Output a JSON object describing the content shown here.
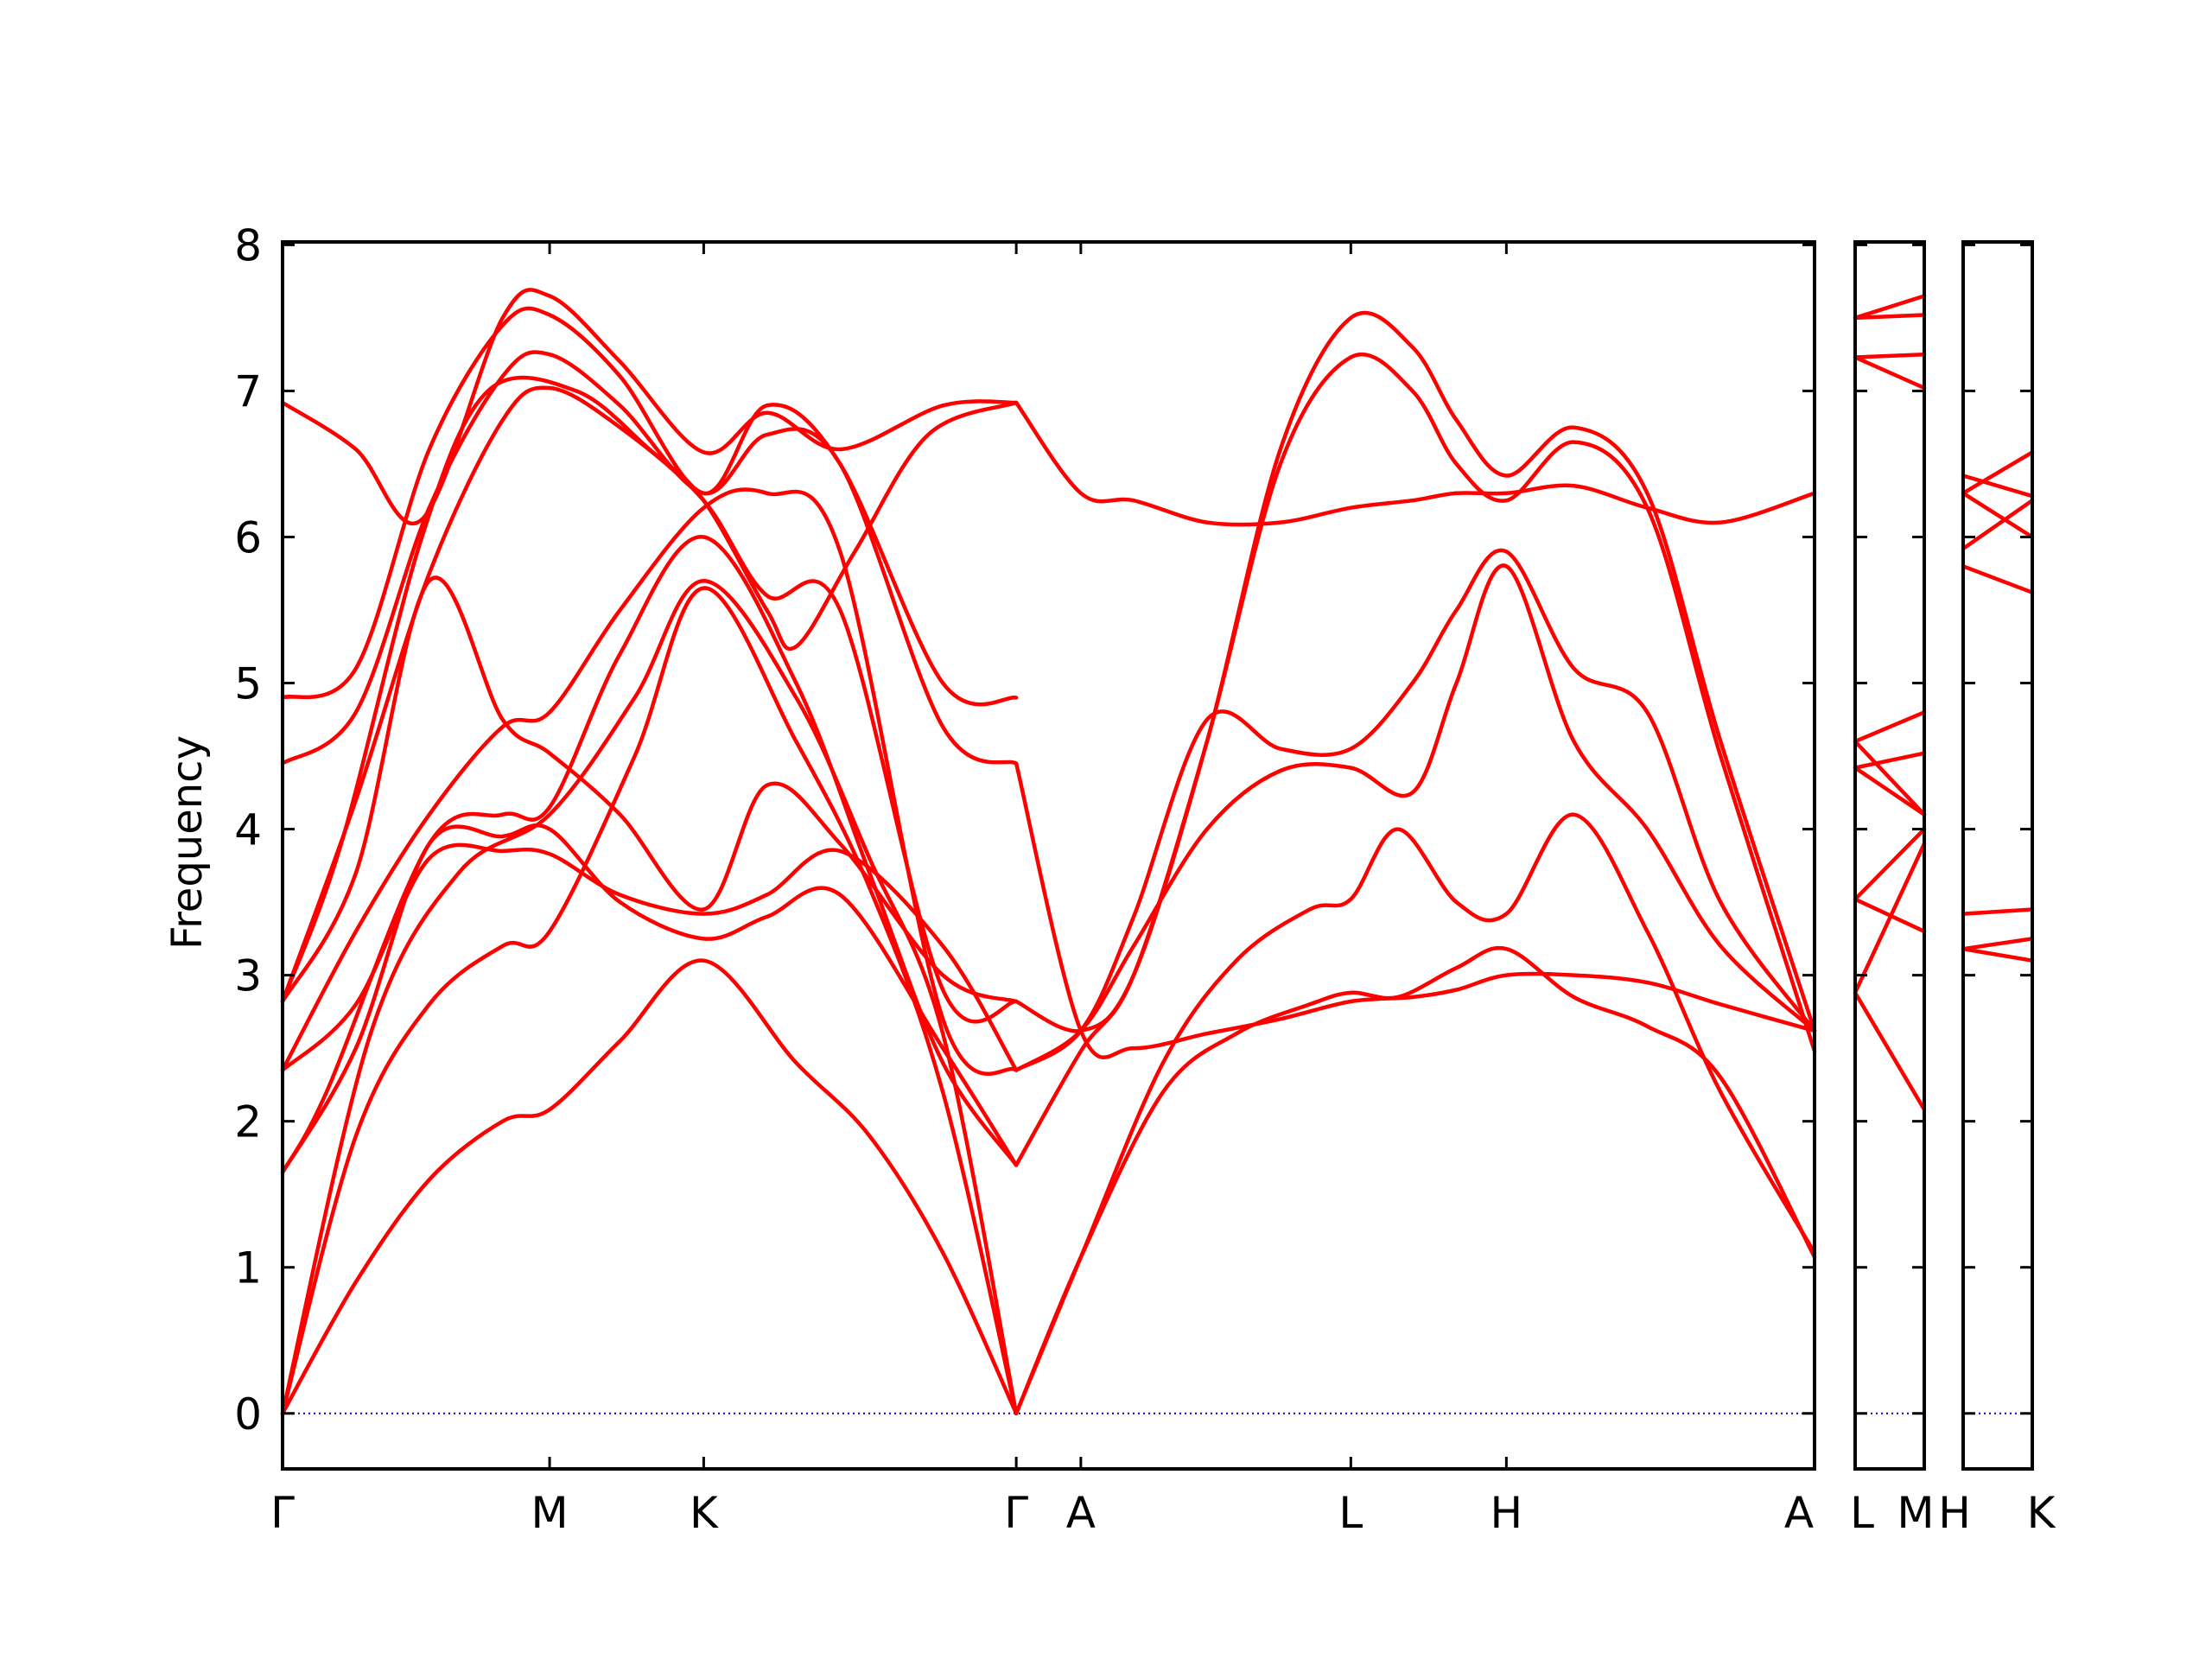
{
  "chart_data": {
    "type": "line",
    "title": "",
    "ylabel": "Frequency",
    "xlabel": "",
    "ylim": [
      -0.38,
      8.02
    ],
    "yticks": [
      0,
      1,
      2,
      3,
      4,
      5,
      6,
      7,
      8
    ],
    "ytick_labels": [
      "0",
      "1",
      "2",
      "3",
      "4",
      "5",
      "6",
      "7",
      "8"
    ],
    "grid": false,
    "legend": "none",
    "colors": {
      "band": "#ff0000",
      "zero_line": "#0000cd",
      "axes": "#000000"
    },
    "panels": [
      {
        "name": "main",
        "x_range": [
          0,
          10.44
        ],
        "ticks": [
          0,
          1.82,
          2.87,
          5.0,
          5.44,
          7.28,
          8.34,
          10.44
        ],
        "tick_labels": [
          "Γ",
          "M",
          "K",
          "Γ",
          "A",
          "L",
          "H",
          "A"
        ]
      },
      {
        "name": "L-M",
        "x_range": [
          0,
          0.45
        ],
        "ticks": [
          0,
          0.45
        ],
        "tick_labels": [
          "L",
          "M"
        ]
      },
      {
        "name": "H-K",
        "x_range": [
          0,
          0.45
        ],
        "ticks": [
          0,
          0.45
        ],
        "tick_labels": [
          "H",
          "K"
        ]
      }
    ],
    "series": [
      {
        "panel": 0,
        "x": [
          0,
          0.5,
          1.0,
          1.5,
          1.82,
          2.3,
          2.87,
          3.5,
          4.0,
          4.5,
          5.0
        ],
        "values": [
          0,
          0.9,
          1.6,
          2.0,
          2.08,
          2.55,
          3.1,
          2.4,
          1.9,
          1.1,
          0
        ]
      },
      {
        "panel": 0,
        "x": [
          0,
          0.5,
          1.0,
          1.5,
          1.82,
          2.4,
          2.87,
          3.5,
          4.0,
          4.5,
          5.0
        ],
        "values": [
          0,
          1.9,
          2.8,
          3.2,
          3.3,
          4.5,
          5.65,
          4.6,
          3.6,
          2.2,
          0
        ]
      },
      {
        "panel": 0,
        "x": [
          0,
          0.6,
          1.2,
          1.82,
          2.4,
          2.87,
          3.5,
          4.0,
          4.5,
          5.0
        ],
        "values": [
          0,
          2.6,
          3.7,
          4.1,
          4.9,
          5.7,
          4.9,
          3.8,
          2.6,
          0
        ]
      },
      {
        "panel": 0,
        "x": [
          0,
          0.3,
          1.0,
          1.5,
          1.82,
          2.3,
          2.87,
          3.5,
          4.0,
          4.5,
          5.0
        ],
        "values": [
          1.65,
          2.2,
          3.9,
          4.1,
          4.15,
          5.2,
          6.0,
          5.0,
          3.7,
          2.4,
          1.7
        ]
      },
      {
        "panel": 0,
        "x": [
          0,
          0.5,
          1.0,
          1.5,
          1.82,
          2.3,
          2.87,
          3.3,
          3.8,
          4.5,
          5.0
        ],
        "values": [
          1.65,
          2.5,
          3.9,
          3.95,
          4.0,
          3.5,
          3.25,
          3.4,
          3.55,
          2.5,
          1.7
        ]
      },
      {
        "panel": 0,
        "x": [
          0,
          0.5,
          1.0,
          1.5,
          1.82,
          2.3,
          2.87,
          3.3,
          3.8,
          4.5,
          5.0
        ],
        "values": [
          2.35,
          2.8,
          3.8,
          3.85,
          3.83,
          3.55,
          3.42,
          3.55,
          3.85,
          3.2,
          2.35
        ]
      },
      {
        "panel": 0,
        "x": [
          0,
          0.5,
          1.0,
          1.5,
          1.82,
          2.3,
          2.87,
          3.3,
          3.8,
          4.5,
          5.0
        ],
        "values": [
          2.35,
          3.3,
          4.1,
          4.7,
          4.8,
          5.5,
          6.2,
          6.3,
          5.9,
          2.7,
          2.35
        ]
      },
      {
        "panel": 0,
        "x": [
          0,
          0.5,
          1.0,
          1.5,
          1.82,
          2.3,
          2.87,
          3.3,
          3.8,
          4.5,
          5.0
        ],
        "values": [
          2.82,
          3.7,
          5.7,
          4.75,
          4.52,
          4.1,
          3.45,
          4.3,
          3.9,
          3.0,
          2.82
        ]
      },
      {
        "panel": 0,
        "x": [
          0,
          0.5,
          1.0,
          1.5,
          1.82,
          2.3,
          2.87,
          3.3,
          3.8,
          4.5,
          5.0
        ],
        "values": [
          2.82,
          4.2,
          5.75,
          6.8,
          7.02,
          6.75,
          6.25,
          5.6,
          5.5,
          2.9,
          2.82
        ]
      },
      {
        "panel": 0,
        "x": [
          0,
          0.5,
          1.0,
          1.5,
          1.82,
          2.3,
          2.87,
          3.3,
          3.8,
          4.5,
          5.0
        ],
        "values": [
          4.45,
          4.8,
          6.2,
          7.1,
          7.25,
          6.9,
          6.3,
          6.7,
          6.5,
          4.7,
          4.45
        ]
      },
      {
        "panel": 0,
        "x": [
          0,
          0.5,
          1.0,
          1.5,
          1.82,
          2.3,
          2.87,
          3.3,
          3.8,
          4.5,
          5.0
        ],
        "values": [
          4.9,
          5.1,
          6.6,
          7.45,
          7.52,
          7.1,
          6.3,
          6.9,
          6.5,
          5.0,
          4.9
        ]
      },
      {
        "panel": 0,
        "x": [
          0,
          0.5,
          0.95,
          1.5,
          1.82,
          2.3,
          2.87,
          3.3,
          3.8,
          4.5,
          5.0
        ],
        "values": [
          6.92,
          6.6,
          6.12,
          7.5,
          7.65,
          7.2,
          6.58,
          6.85,
          6.6,
          6.9,
          6.92
        ]
      },
      {
        "panel": 0,
        "x": [
          0,
          0.4,
          0.95,
          1.4,
          2.0,
          2.5,
          2.87,
          3.3,
          3.5,
          3.9,
          4.4,
          5.0
        ],
        "values": [
          2.82,
          3.9,
          6.0,
          7.0,
          7.0,
          6.6,
          6.25,
          5.5,
          5.25,
          5.9,
          6.7,
          6.92
        ]
      },
      {
        "panel": 0,
        "x": [
          5.0,
          5.44,
          6.0,
          6.5,
          7.0,
          7.28,
          7.6,
          8.0,
          8.34,
          8.8,
          9.3,
          9.8,
          10.44
        ],
        "values": [
          0,
          1.07,
          2.2,
          2.6,
          2.8,
          2.88,
          2.85,
          3.05,
          3.18,
          2.85,
          2.65,
          2.3,
          1.07
        ]
      },
      {
        "panel": 0,
        "x": [
          5.0,
          5.44,
          6.0,
          6.5,
          7.0,
          7.28,
          7.6,
          8.0,
          8.34,
          8.8,
          9.3,
          9.8,
          10.44
        ],
        "values": [
          0,
          1.07,
          2.4,
          3.1,
          3.45,
          3.52,
          4.0,
          3.5,
          3.42,
          4.1,
          3.3,
          2.2,
          1.1
        ]
      },
      {
        "panel": 0,
        "x": [
          5.0,
          5.44,
          5.8,
          6.3,
          6.8,
          7.28,
          7.7,
          8.0,
          8.34,
          8.8,
          9.3,
          9.8,
          10.44
        ],
        "values": [
          2.35,
          2.62,
          3.2,
          4.0,
          4.4,
          4.42,
          4.25,
          5.0,
          5.8,
          4.6,
          4.0,
          3.2,
          2.62
        ]
      },
      {
        "panel": 0,
        "x": [
          5.0,
          5.44,
          5.8,
          6.3,
          6.8,
          7.28,
          7.7,
          8.0,
          8.34,
          8.8,
          9.3,
          9.8,
          10.44
        ],
        "values": [
          2.35,
          2.62,
          3.4,
          4.75,
          4.55,
          4.55,
          5.0,
          5.5,
          5.9,
          5.1,
          4.8,
          3.5,
          2.62
        ]
      },
      {
        "panel": 0,
        "x": [
          5.0,
          5.44,
          5.8,
          6.3,
          6.8,
          7.28,
          7.7,
          8.0,
          8.34,
          8.8,
          9.3,
          9.8,
          10.44
        ],
        "values": [
          1.7,
          2.48,
          3.0,
          4.6,
          6.5,
          7.23,
          7.0,
          6.5,
          6.25,
          6.65,
          6.2,
          4.5,
          2.48
        ]
      },
      {
        "panel": 0,
        "x": [
          5.0,
          5.44,
          5.8,
          6.3,
          6.8,
          7.28,
          7.7,
          8.0,
          8.34,
          8.8,
          9.3,
          9.8,
          10.44
        ],
        "values": [
          2.82,
          2.62,
          3.0,
          4.6,
          6.6,
          7.5,
          7.3,
          6.8,
          6.42,
          6.75,
          6.3,
          4.6,
          2.62
        ]
      },
      {
        "panel": 0,
        "x": [
          5.0,
          5.44,
          5.8,
          6.3,
          6.8,
          7.28,
          7.7,
          8.0,
          8.34,
          8.8,
          9.3,
          9.8,
          10.44
        ],
        "values": [
          4.45,
          2.62,
          2.5,
          2.6,
          2.7,
          2.82,
          2.85,
          2.9,
          3.0,
          3.0,
          2.95,
          2.8,
          2.62
        ]
      },
      {
        "panel": 0,
        "x": [
          5.0,
          5.44,
          5.8,
          6.3,
          6.8,
          7.28,
          7.7,
          8.0,
          8.34,
          8.8,
          9.3,
          9.8,
          10.44
        ],
        "values": [
          6.92,
          6.3,
          6.25,
          6.1,
          6.1,
          6.2,
          6.25,
          6.3,
          6.3,
          6.35,
          6.2,
          6.1,
          6.3
        ]
      },
      {
        "panel": 1,
        "x": [
          0,
          0.45
        ],
        "values": [
          2.88,
          2.08
        ]
      },
      {
        "panel": 1,
        "x": [
          0,
          0.45
        ],
        "values": [
          2.88,
          3.9
        ]
      },
      {
        "panel": 1,
        "x": [
          0,
          0.45
        ],
        "values": [
          3.52,
          4.0
        ]
      },
      {
        "panel": 1,
        "x": [
          0,
          0.45
        ],
        "values": [
          3.52,
          3.3
        ]
      },
      {
        "panel": 1,
        "x": [
          0,
          0.45
        ],
        "values": [
          4.42,
          4.1
        ]
      },
      {
        "panel": 1,
        "x": [
          0,
          0.45
        ],
        "values": [
          4.42,
          4.52
        ]
      },
      {
        "panel": 1,
        "x": [
          0,
          0.45
        ],
        "values": [
          4.6,
          4.8
        ]
      },
      {
        "panel": 1,
        "x": [
          0,
          0.45
        ],
        "values": [
          4.6,
          4.1
        ]
      },
      {
        "panel": 1,
        "x": [
          0,
          0.45
        ],
        "values": [
          7.23,
          7.02
        ]
      },
      {
        "panel": 1,
        "x": [
          0,
          0.45
        ],
        "values": [
          7.23,
          7.25
        ]
      },
      {
        "panel": 1,
        "x": [
          0,
          0.45
        ],
        "values": [
          7.5,
          7.52
        ]
      },
      {
        "panel": 1,
        "x": [
          0,
          0.45
        ],
        "values": [
          7.5,
          7.65
        ]
      },
      {
        "panel": 2,
        "x": [
          0,
          0.45
        ],
        "values": [
          3.18,
          3.1
        ]
      },
      {
        "panel": 2,
        "x": [
          0,
          0.45
        ],
        "values": [
          3.18,
          3.25
        ]
      },
      {
        "panel": 2,
        "x": [
          0,
          0.45
        ],
        "values": [
          3.42,
          3.45
        ]
      },
      {
        "panel": 2,
        "x": [
          0,
          0.45
        ],
        "values": [
          5.8,
          5.62
        ]
      },
      {
        "panel": 2,
        "x": [
          0,
          0.45
        ],
        "values": [
          5.92,
          6.25
        ]
      },
      {
        "panel": 2,
        "x": [
          0,
          0.45
        ],
        "values": [
          6.3,
          6.0
        ]
      },
      {
        "panel": 2,
        "x": [
          0,
          0.45
        ],
        "values": [
          6.42,
          6.28
        ]
      },
      {
        "panel": 2,
        "x": [
          0,
          0.45
        ],
        "values": [
          6.3,
          6.58
        ]
      }
    ]
  }
}
